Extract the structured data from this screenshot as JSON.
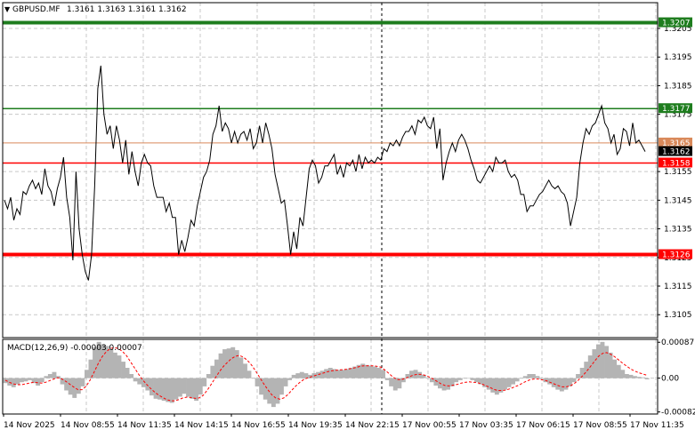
{
  "header": {
    "symbol_label": "GBPUSD.MF",
    "ohlc_label": "1.3161 1.3163 1.3161 1.3162"
  },
  "macd": {
    "label": "MACD(12,26,9) -0.00003 0.00007",
    "y_ticks": [
      "0.00087",
      "0.00",
      "-0.00082"
    ],
    "y_tick_values": [
      0.00087,
      0.0,
      -0.00082
    ],
    "ylim": [
      -0.00087,
      0.00094
    ],
    "histogram": [
      -0.00012,
      -0.00018,
      -0.00022,
      -0.00015,
      -0.0001,
      -8e-05,
      -5e-05,
      -0.00012,
      -0.00018,
      -0.0001,
      5e-05,
      0.0001,
      0.00015,
      5e-05,
      -0.00015,
      -0.0003,
      -0.0004,
      -0.00048,
      -0.00038,
      -0.0002,
      0.0002,
      0.00045,
      0.00075,
      0.00088,
      0.00082,
      0.00078,
      0.0007,
      0.00062,
      0.00055,
      0.0004,
      0.00025,
      0.0001,
      -8e-05,
      -0.00015,
      -0.00022,
      -0.0003,
      -0.00042,
      -0.0005,
      -0.00052,
      -0.00055,
      -0.00058,
      -0.0006,
      -0.00052,
      -0.00045,
      -0.00038,
      -0.00045,
      -0.0005,
      -0.00055,
      -0.0004,
      -0.0002,
      0.0001,
      0.0003,
      0.00045,
      0.0006,
      0.0007,
      0.00072,
      0.00075,
      0.00068,
      0.0005,
      0.00035,
      0.00018,
      0.0,
      -0.0002,
      -0.0004,
      -0.00052,
      -0.00062,
      -0.0007,
      -0.00062,
      -0.0004,
      -0.0002,
      -5e-05,
      8e-05,
      0.00012,
      0.00015,
      0.00012,
      8e-05,
      0.00012,
      0.00015,
      0.00018,
      0.00022,
      0.00025,
      0.00022,
      0.0002,
      0.0002,
      0.00022,
      0.00025,
      0.00028,
      0.00032,
      0.00035,
      0.00032,
      0.0003,
      0.00028,
      0.00025,
      0.0002,
      -5e-05,
      -0.0002,
      -0.0003,
      -0.00025,
      -0.0001,
      0.0001,
      0.00018,
      0.0002,
      0.00015,
      8e-05,
      0.0,
      -0.0001,
      -0.00018,
      -0.00025,
      -0.0003,
      -0.00028,
      -0.0002,
      -0.0001,
      -5e-05,
      0.0,
      0.0,
      -5e-05,
      -0.0001,
      -0.00015,
      -0.00022,
      -0.00028,
      -0.00035,
      -0.0004,
      -0.00035,
      -0.00028,
      -0.00022,
      -0.00015,
      -8e-05,
      0.0,
      5e-05,
      0.0001,
      0.0001,
      5e-05,
      -2e-05,
      -0.0001,
      -0.00015,
      -0.00022,
      -0.00028,
      -0.00032,
      -0.00028,
      -0.0002,
      -0.0001,
      0.0001,
      0.00025,
      0.0004,
      0.00055,
      0.0007,
      0.00082,
      0.00088,
      0.00078,
      0.00062,
      0.00045,
      0.00032,
      0.0002,
      0.0001,
      8e-05,
      5e-05,
      3e-05,
      2e-05,
      -3e-05
    ],
    "signal": [
      -5e-05,
      -0.0001,
      -0.00014,
      -0.00016,
      -0.00016,
      -0.00014,
      -0.00012,
      -0.0001,
      -0.00011,
      -0.00012,
      -0.0001,
      -6e-05,
      -2e-05,
      1e-05,
      -2e-05,
      -8e-05,
      -0.00015,
      -0.00022,
      -0.00028,
      -0.00028,
      -0.0002,
      -5e-05,
      0.00015,
      0.00035,
      0.00052,
      0.00064,
      0.00072,
      0.00074,
      0.00072,
      0.00065,
      0.00055,
      0.0004,
      0.00025,
      0.0001,
      -4e-05,
      -0.00015,
      -0.00025,
      -0.00034,
      -0.00041,
      -0.00047,
      -0.00052,
      -0.00055,
      -0.00055,
      -0.00052,
      -0.00048,
      -0.00046,
      -0.00047,
      -0.00049,
      -0.00048,
      -0.00042,
      -0.0003,
      -0.00015,
      0.0,
      0.00015,
      0.00028,
      0.00038,
      0.00047,
      0.00053,
      0.00055,
      0.00051,
      0.00043,
      0.00032,
      0.00018,
      2e-05,
      -0.00013,
      -0.00027,
      -0.0004,
      -0.00048,
      -0.00051,
      -0.00048,
      -0.0004,
      -0.00029,
      -0.00019,
      -0.0001,
      -3e-05,
      1e-05,
      4e-05,
      7e-05,
      0.0001,
      0.00013,
      0.00016,
      0.00018,
      0.00019,
      0.0002,
      0.00021,
      0.00022,
      0.00024,
      0.00026,
      0.00029,
      0.0003,
      0.0003,
      0.0003,
      0.00029,
      0.00027,
      0.0002,
      0.00012,
      3e-05,
      -3e-05,
      -4e-05,
      -1e-05,
      3e-05,
      7e-05,
      9e-05,
      9e-05,
      7e-05,
      3e-05,
      -2e-05,
      -8e-05,
      -0.00014,
      -0.00018,
      -0.00019,
      -0.00017,
      -0.00015,
      -0.00012,
      -0.0001,
      -9e-05,
      -0.0001,
      -0.00011,
      -0.00014,
      -0.00018,
      -0.00022,
      -0.00027,
      -0.0003,
      -0.0003,
      -0.00029,
      -0.00026,
      -0.00022,
      -0.00018,
      -0.00013,
      -8e-05,
      -4e-05,
      -2e-05,
      -2e-05,
      -4e-05,
      -6e-05,
      -0.0001,
      -0.00014,
      -0.00018,
      -0.00021,
      -0.00021,
      -0.00019,
      -0.00013,
      -5e-05,
      5e-05,
      0.00016,
      0.00028,
      0.00041,
      0.00053,
      0.0006,
      0.00062,
      0.00058,
      0.00052,
      0.00044,
      0.00036,
      0.00029,
      0.00022,
      0.00017,
      0.00013,
      0.0001,
      7e-05
    ]
  },
  "x_ticks": [
    {
      "label": "14 Nov 2025",
      "index": 0
    },
    {
      "label": "14 Nov 08:55",
      "index": 16
    },
    {
      "label": "14 Nov 11:35",
      "index": 32
    },
    {
      "label": "14 Nov 14:15",
      "index": 48
    },
    {
      "label": "14 Nov 16:55",
      "index": 64
    },
    {
      "label": "14 Nov 19:35",
      "index": 80
    },
    {
      "label": "14 Nov 22:15",
      "index": 96
    },
    {
      "label": "17 Nov 00:55",
      "index": 112
    },
    {
      "label": "17 Nov 03:35",
      "index": 128
    },
    {
      "label": "17 Nov 06:15",
      "index": 144
    },
    {
      "label": "17 Nov 08:55",
      "index": 160
    },
    {
      "label": "17 Nov 11:35",
      "index": 176
    }
  ],
  "colors": {
    "price_line": "#000000",
    "grid": "#c8c8c8",
    "green": "#1e7d1e",
    "red": "#ff0000",
    "orange": "#d9895a",
    "histogram": "#b4b4b4",
    "signal": "#ff0000",
    "text": "#000000"
  },
  "chart_data": [
    {
      "type": "line",
      "title": "GBPUSD.MF",
      "ylim": [
        1.3097,
        1.3214
      ],
      "y_ticks": [
        "1.3205",
        "1.3195",
        "1.3185",
        "1.3175",
        "1.3155",
        "1.3145",
        "1.3135",
        "1.3125",
        "1.3115",
        "1.3105"
      ],
      "y_tick_values": [
        1.3205,
        1.3195,
        1.3185,
        1.3175,
        1.3155,
        1.3145,
        1.3135,
        1.3125,
        1.3115,
        1.3105
      ],
      "grid": true,
      "session_separator_index": 104,
      "levels": [
        {
          "label": "1.3207",
          "value": 1.3207,
          "role": "green"
        },
        {
          "label": "1.3177",
          "value": 1.3177,
          "role": "green"
        },
        {
          "label": "1.3165",
          "value": 1.3165,
          "role": "orange"
        },
        {
          "label": "1.3158",
          "value": 1.3158,
          "role": "red"
        },
        {
          "label": "1.3126",
          "value": 1.3126,
          "role": "red"
        }
      ],
      "last_price": {
        "label": "1.3162",
        "value": 1.3162
      },
      "series": [
        {
          "values": [
            1.3145,
            1.3142,
            1.3146,
            1.3138,
            1.3142,
            1.314,
            1.3148,
            1.3147,
            1.315,
            1.3152,
            1.3149,
            1.3151,
            1.3147,
            1.3156,
            1.315,
            1.3148,
            1.3143,
            1.3149,
            1.3153,
            1.316,
            1.3146,
            1.3139,
            1.3124,
            1.3155,
            1.3135,
            1.3126,
            1.312,
            1.3117,
            1.3126,
            1.315,
            1.3184,
            1.3192,
            1.3175,
            1.3168,
            1.3171,
            1.3163,
            1.3171,
            1.3166,
            1.3158,
            1.3166,
            1.3154,
            1.3162,
            1.3155,
            1.315,
            1.3158,
            1.3161,
            1.3158,
            1.3157,
            1.315,
            1.3146,
            1.3146,
            1.3146,
            1.3141,
            1.3144,
            1.3139,
            1.3139,
            1.3126,
            1.3131,
            1.3127,
            1.3132,
            1.3138,
            1.3136,
            1.3143,
            1.3148,
            1.3153,
            1.3155,
            1.3159,
            1.3168,
            1.3171,
            1.3178,
            1.3169,
            1.3172,
            1.317,
            1.3165,
            1.3169,
            1.3165,
            1.3168,
            1.3169,
            1.3166,
            1.317,
            1.3163,
            1.3165,
            1.3171,
            1.3165,
            1.3172,
            1.3168,
            1.3163,
            1.3154,
            1.3149,
            1.3144,
            1.3145,
            1.3136,
            1.3126,
            1.3134,
            1.3128,
            1.3139,
            1.3136,
            1.3146,
            1.3156,
            1.3159,
            1.3157,
            1.3151,
            1.3153,
            1.3157,
            1.3157,
            1.3159,
            1.3161,
            1.3154,
            1.3157,
            1.3153,
            1.3158,
            1.3157,
            1.3159,
            1.3155,
            1.3161,
            1.3156,
            1.316,
            1.3158,
            1.3159,
            1.3158,
            1.316,
            1.3159,
            1.3163,
            1.3162,
            1.3165,
            1.3164,
            1.3166,
            1.3164,
            1.3167,
            1.3169,
            1.3169,
            1.3171,
            1.3168,
            1.3173,
            1.3172,
            1.3174,
            1.3171,
            1.317,
            1.3174,
            1.3163,
            1.317,
            1.3152,
            1.3158,
            1.3162,
            1.3165,
            1.3162,
            1.3166,
            1.3168,
            1.3166,
            1.3163,
            1.3159,
            1.3156,
            1.3152,
            1.3151,
            1.3153,
            1.3155,
            1.3157,
            1.3155,
            1.316,
            1.3158,
            1.3158,
            1.3159,
            1.3155,
            1.3153,
            1.3154,
            1.3152,
            1.3147,
            1.3147,
            1.3141,
            1.3143,
            1.3143,
            1.3145,
            1.3147,
            1.3148,
            1.315,
            1.3152,
            1.315,
            1.3149,
            1.315,
            1.3148,
            1.3147,
            1.3144,
            1.3136,
            1.3141,
            1.3146,
            1.3158,
            1.3165,
            1.317,
            1.3168,
            1.3171,
            1.3172,
            1.3175,
            1.3178,
            1.3172,
            1.317,
            1.3165,
            1.3168,
            1.3161,
            1.3163,
            1.317,
            1.3169,
            1.3164,
            1.3172,
            1.3165,
            1.3166,
            1.3164,
            1.3162
          ]
        }
      ]
    }
  ]
}
